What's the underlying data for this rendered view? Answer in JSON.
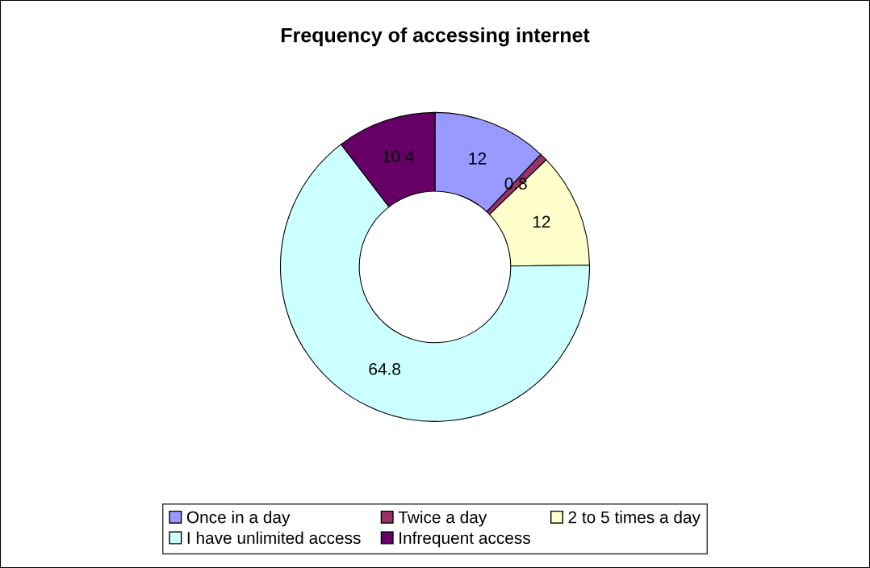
{
  "chart_data": {
    "type": "donut",
    "title": "Frequency of accessing internet",
    "categories": [
      "Once in a day",
      "Twice a day",
      "2 to 5 times a day",
      "I have unlimited access",
      "Infrequent access"
    ],
    "values": [
      12,
      0.8,
      12,
      64.8,
      10.4
    ],
    "colors": [
      "#9999ff",
      "#993366",
      "#ffffcc",
      "#ccffff",
      "#660066"
    ],
    "data_labels": true,
    "legend": "bottom"
  }
}
